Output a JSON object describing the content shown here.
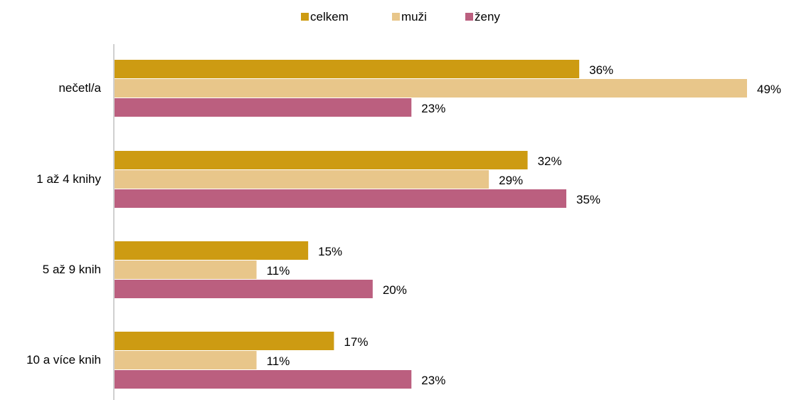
{
  "chart_data": {
    "type": "bar",
    "orientation": "horizontal",
    "categories": [
      "nečetl/a",
      "1 až 4 knihy",
      "5 až 9 knih",
      "10 a více knih"
    ],
    "series": [
      {
        "name": "celkem",
        "values": [
          36,
          32,
          15,
          17
        ],
        "color": "#cd9b12"
      },
      {
        "name": "muži",
        "values": [
          49,
          29,
          11,
          11
        ],
        "color": "#e8c68a"
      },
      {
        "name": "ženy",
        "values": [
          23,
          35,
          20,
          23
        ],
        "color": "#bb5f7f"
      }
    ],
    "value_suffix": "%",
    "title": "",
    "xlabel": "",
    "ylabel": "",
    "xlim": [
      0,
      49
    ],
    "legend_position": "top",
    "grid": false,
    "data_labels": true
  }
}
